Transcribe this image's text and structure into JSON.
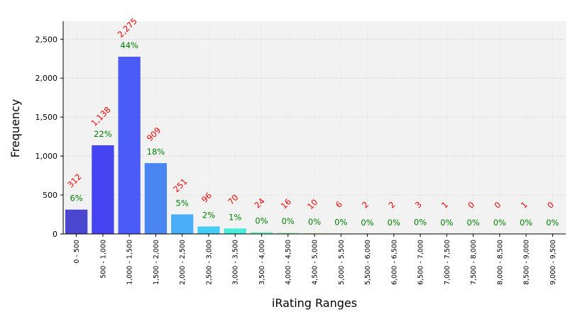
{
  "chart_data": {
    "type": "bar",
    "title": "",
    "xlabel": "iRating Ranges",
    "ylabel": "Frequency",
    "ylim": [
      0,
      2730
    ],
    "yticks": [
      0,
      500,
      1000,
      1500,
      2000,
      2500
    ],
    "ytick_labels": [
      "0",
      "500",
      "1,000",
      "1,500",
      "2,000",
      "2,500"
    ],
    "grid": true,
    "categories": [
      "0 - 500",
      "500 - 1,000",
      "1,000 - 1,500",
      "1,500 - 2,000",
      "2,000 - 2,500",
      "2,500 - 3,000",
      "3,000 - 3,500",
      "3,500 - 4,000",
      "4,000 - 4,500",
      "4,500 - 5,000",
      "5,000 - 5,500",
      "5,500 - 6,000",
      "6,000 - 6,500",
      "6,500 - 7,000",
      "7,000 - 7,500",
      "7,500 - 8,000",
      "8,000 - 8,500",
      "8,500 - 9,000",
      "9,000 - 9,500"
    ],
    "values": [
      312,
      1138,
      2275,
      909,
      251,
      96,
      70,
      24,
      16,
      10,
      6,
      2,
      2,
      3,
      1,
      0,
      0,
      1,
      0
    ],
    "count_labels": [
      "312",
      "1,138",
      "2,275",
      "909",
      "251",
      "96",
      "70",
      "24",
      "16",
      "10",
      "6",
      "2",
      "2",
      "3",
      "1",
      "0",
      "0",
      "1",
      "0"
    ],
    "percent_labels": [
      "6%",
      "22%",
      "44%",
      "18%",
      "5%",
      "2%",
      "1%",
      "0%",
      "0%",
      "0%",
      "0%",
      "0%",
      "0%",
      "0%",
      "0%",
      "0%",
      "0%",
      "0%",
      "0%"
    ],
    "bar_colors": [
      "#4a46cf",
      "#4644f2",
      "#4a5cf5",
      "#4a86f2",
      "#48aef7",
      "#45ccf5",
      "#45ecd9",
      "#7ef3c7",
      "#a8f4b7",
      "#c4f5a6",
      "#dcf39b",
      "#eef091",
      "#f4e487",
      "#f4d07a",
      "#f3b86d",
      "#f29c60",
      "#f07f52",
      "#ee6244",
      "#ea4436"
    ],
    "colors": {
      "count_label": "#ff0000",
      "percent_label": "#008000",
      "plot_background": "#f2f2f2",
      "grid": "#c8c8c8"
    }
  }
}
